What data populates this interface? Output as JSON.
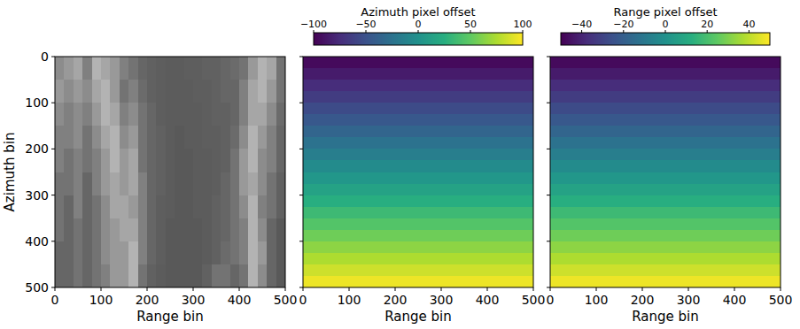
{
  "chart_data": [
    {
      "type": "image",
      "xlabel": "Range bin",
      "ylabel": "Azimuth bin",
      "xlim": [
        0,
        500
      ],
      "ylim": [
        500,
        0
      ],
      "xticks": [
        0,
        100,
        200,
        300,
        400,
        500
      ],
      "yticks": [
        0,
        100,
        200,
        300,
        400,
        500
      ],
      "color": "gray",
      "zlim": [
        0,
        1
      ],
      "cells": [
        [
          0.55,
          0.6,
          0.65,
          0.5,
          0.7,
          0.65,
          0.6,
          0.5,
          0.45,
          0.4,
          0.38,
          0.37,
          0.36,
          0.36,
          0.37,
          0.37,
          0.38,
          0.38,
          0.4,
          0.42,
          0.45,
          0.6,
          0.7,
          0.65,
          0.45
        ],
        [
          0.6,
          0.55,
          0.6,
          0.55,
          0.65,
          0.7,
          0.6,
          0.45,
          0.5,
          0.42,
          0.38,
          0.37,
          0.36,
          0.36,
          0.36,
          0.37,
          0.37,
          0.38,
          0.4,
          0.4,
          0.5,
          0.65,
          0.7,
          0.6,
          0.45
        ],
        [
          0.55,
          0.5,
          0.55,
          0.5,
          0.6,
          0.7,
          0.65,
          0.5,
          0.55,
          0.45,
          0.4,
          0.37,
          0.36,
          0.36,
          0.36,
          0.36,
          0.37,
          0.38,
          0.38,
          0.4,
          0.5,
          0.65,
          0.65,
          0.55,
          0.42
        ],
        [
          0.5,
          0.5,
          0.55,
          0.45,
          0.55,
          0.65,
          0.7,
          0.55,
          0.6,
          0.45,
          0.4,
          0.38,
          0.36,
          0.35,
          0.36,
          0.36,
          0.37,
          0.37,
          0.38,
          0.42,
          0.55,
          0.7,
          0.6,
          0.5,
          0.4
        ],
        [
          0.5,
          0.45,
          0.5,
          0.45,
          0.5,
          0.6,
          0.7,
          0.6,
          0.65,
          0.45,
          0.4,
          0.38,
          0.36,
          0.35,
          0.35,
          0.36,
          0.36,
          0.37,
          0.38,
          0.45,
          0.6,
          0.7,
          0.55,
          0.5,
          0.4
        ],
        [
          0.45,
          0.45,
          0.5,
          0.4,
          0.5,
          0.6,
          0.65,
          0.6,
          0.65,
          0.5,
          0.4,
          0.38,
          0.36,
          0.35,
          0.35,
          0.36,
          0.36,
          0.37,
          0.4,
          0.45,
          0.6,
          0.65,
          0.55,
          0.45,
          0.38
        ],
        [
          0.45,
          0.4,
          0.5,
          0.4,
          0.45,
          0.55,
          0.65,
          0.65,
          0.6,
          0.5,
          0.4,
          0.37,
          0.36,
          0.35,
          0.35,
          0.36,
          0.36,
          0.38,
          0.4,
          0.45,
          0.55,
          0.7,
          0.5,
          0.45,
          0.38
        ],
        [
          0.45,
          0.4,
          0.45,
          0.4,
          0.45,
          0.55,
          0.6,
          0.65,
          0.65,
          0.5,
          0.4,
          0.37,
          0.35,
          0.35,
          0.35,
          0.35,
          0.36,
          0.38,
          0.4,
          0.45,
          0.5,
          0.7,
          0.55,
          0.4,
          0.35
        ],
        [
          0.4,
          0.4,
          0.45,
          0.4,
          0.45,
          0.55,
          0.6,
          0.6,
          0.7,
          0.5,
          0.4,
          0.37,
          0.35,
          0.35,
          0.35,
          0.35,
          0.36,
          0.38,
          0.42,
          0.45,
          0.5,
          0.7,
          0.6,
          0.4,
          0.35
        ],
        [
          0.4,
          0.4,
          0.45,
          0.4,
          0.45,
          0.5,
          0.6,
          0.6,
          0.7,
          0.45,
          0.38,
          0.36,
          0.35,
          0.35,
          0.35,
          0.35,
          0.38,
          0.45,
          0.45,
          0.4,
          0.45,
          0.7,
          0.55,
          0.4,
          0.35
        ]
      ]
    },
    {
      "type": "heatmap",
      "xlabel": "Range bin",
      "xlim": [
        0,
        500
      ],
      "ylim": [
        500,
        0
      ],
      "xticks": [
        0,
        100,
        200,
        300,
        400,
        500
      ],
      "yticks": [
        0,
        100,
        200,
        300,
        400,
        500
      ],
      "tick_labels": "x",
      "color": "viridis",
      "colorbar": {
        "label": "Azimuth pixel offset",
        "range": [
          -100,
          100
        ],
        "ticks": [
          {
            "value": -100,
            "label": "−100"
          },
          {
            "value": -50,
            "label": "−50"
          },
          0,
          50,
          100
        ]
      },
      "cells": [
        [
          -95
        ],
        [
          -85
        ],
        [
          -75
        ],
        [
          -65
        ],
        [
          -55
        ],
        [
          -45
        ],
        [
          -35
        ],
        [
          -25
        ],
        [
          -15
        ],
        [
          -5
        ],
        [
          5
        ],
        [
          15
        ],
        [
          25
        ],
        [
          35
        ],
        [
          45
        ],
        [
          55
        ],
        [
          65
        ],
        [
          75
        ],
        [
          85
        ],
        [
          95
        ]
      ]
    },
    {
      "type": "heatmap",
      "xlabel": "Range bin",
      "xlim": [
        0,
        500
      ],
      "ylim": [
        500,
        0
      ],
      "xticks": [
        0,
        100,
        200,
        300,
        400,
        500
      ],
      "yticks": [
        0,
        100,
        200,
        300,
        400,
        500
      ],
      "tick_labels": "x",
      "color": "viridis",
      "colorbar": {
        "label": "Range pixel offset",
        "range": [
          -50,
          50
        ],
        "ticks": [
          {
            "value": -40,
            "label": "−40"
          },
          {
            "value": -20,
            "label": "−20"
          },
          0,
          20,
          40
        ]
      },
      "cells": [
        [
          -47.5
        ],
        [
          -42.5
        ],
        [
          -37.5
        ],
        [
          -32.5
        ],
        [
          -27.5
        ],
        [
          -22.5
        ],
        [
          -17.5
        ],
        [
          -12.5
        ],
        [
          -7.5
        ],
        [
          -2.5
        ],
        [
          2.5
        ],
        [
          7.5
        ],
        [
          12.5
        ],
        [
          17.5
        ],
        [
          22.5
        ],
        [
          27.5
        ],
        [
          32.5
        ],
        [
          37.5
        ],
        [
          42.5
        ],
        [
          47.5
        ]
      ]
    }
  ]
}
